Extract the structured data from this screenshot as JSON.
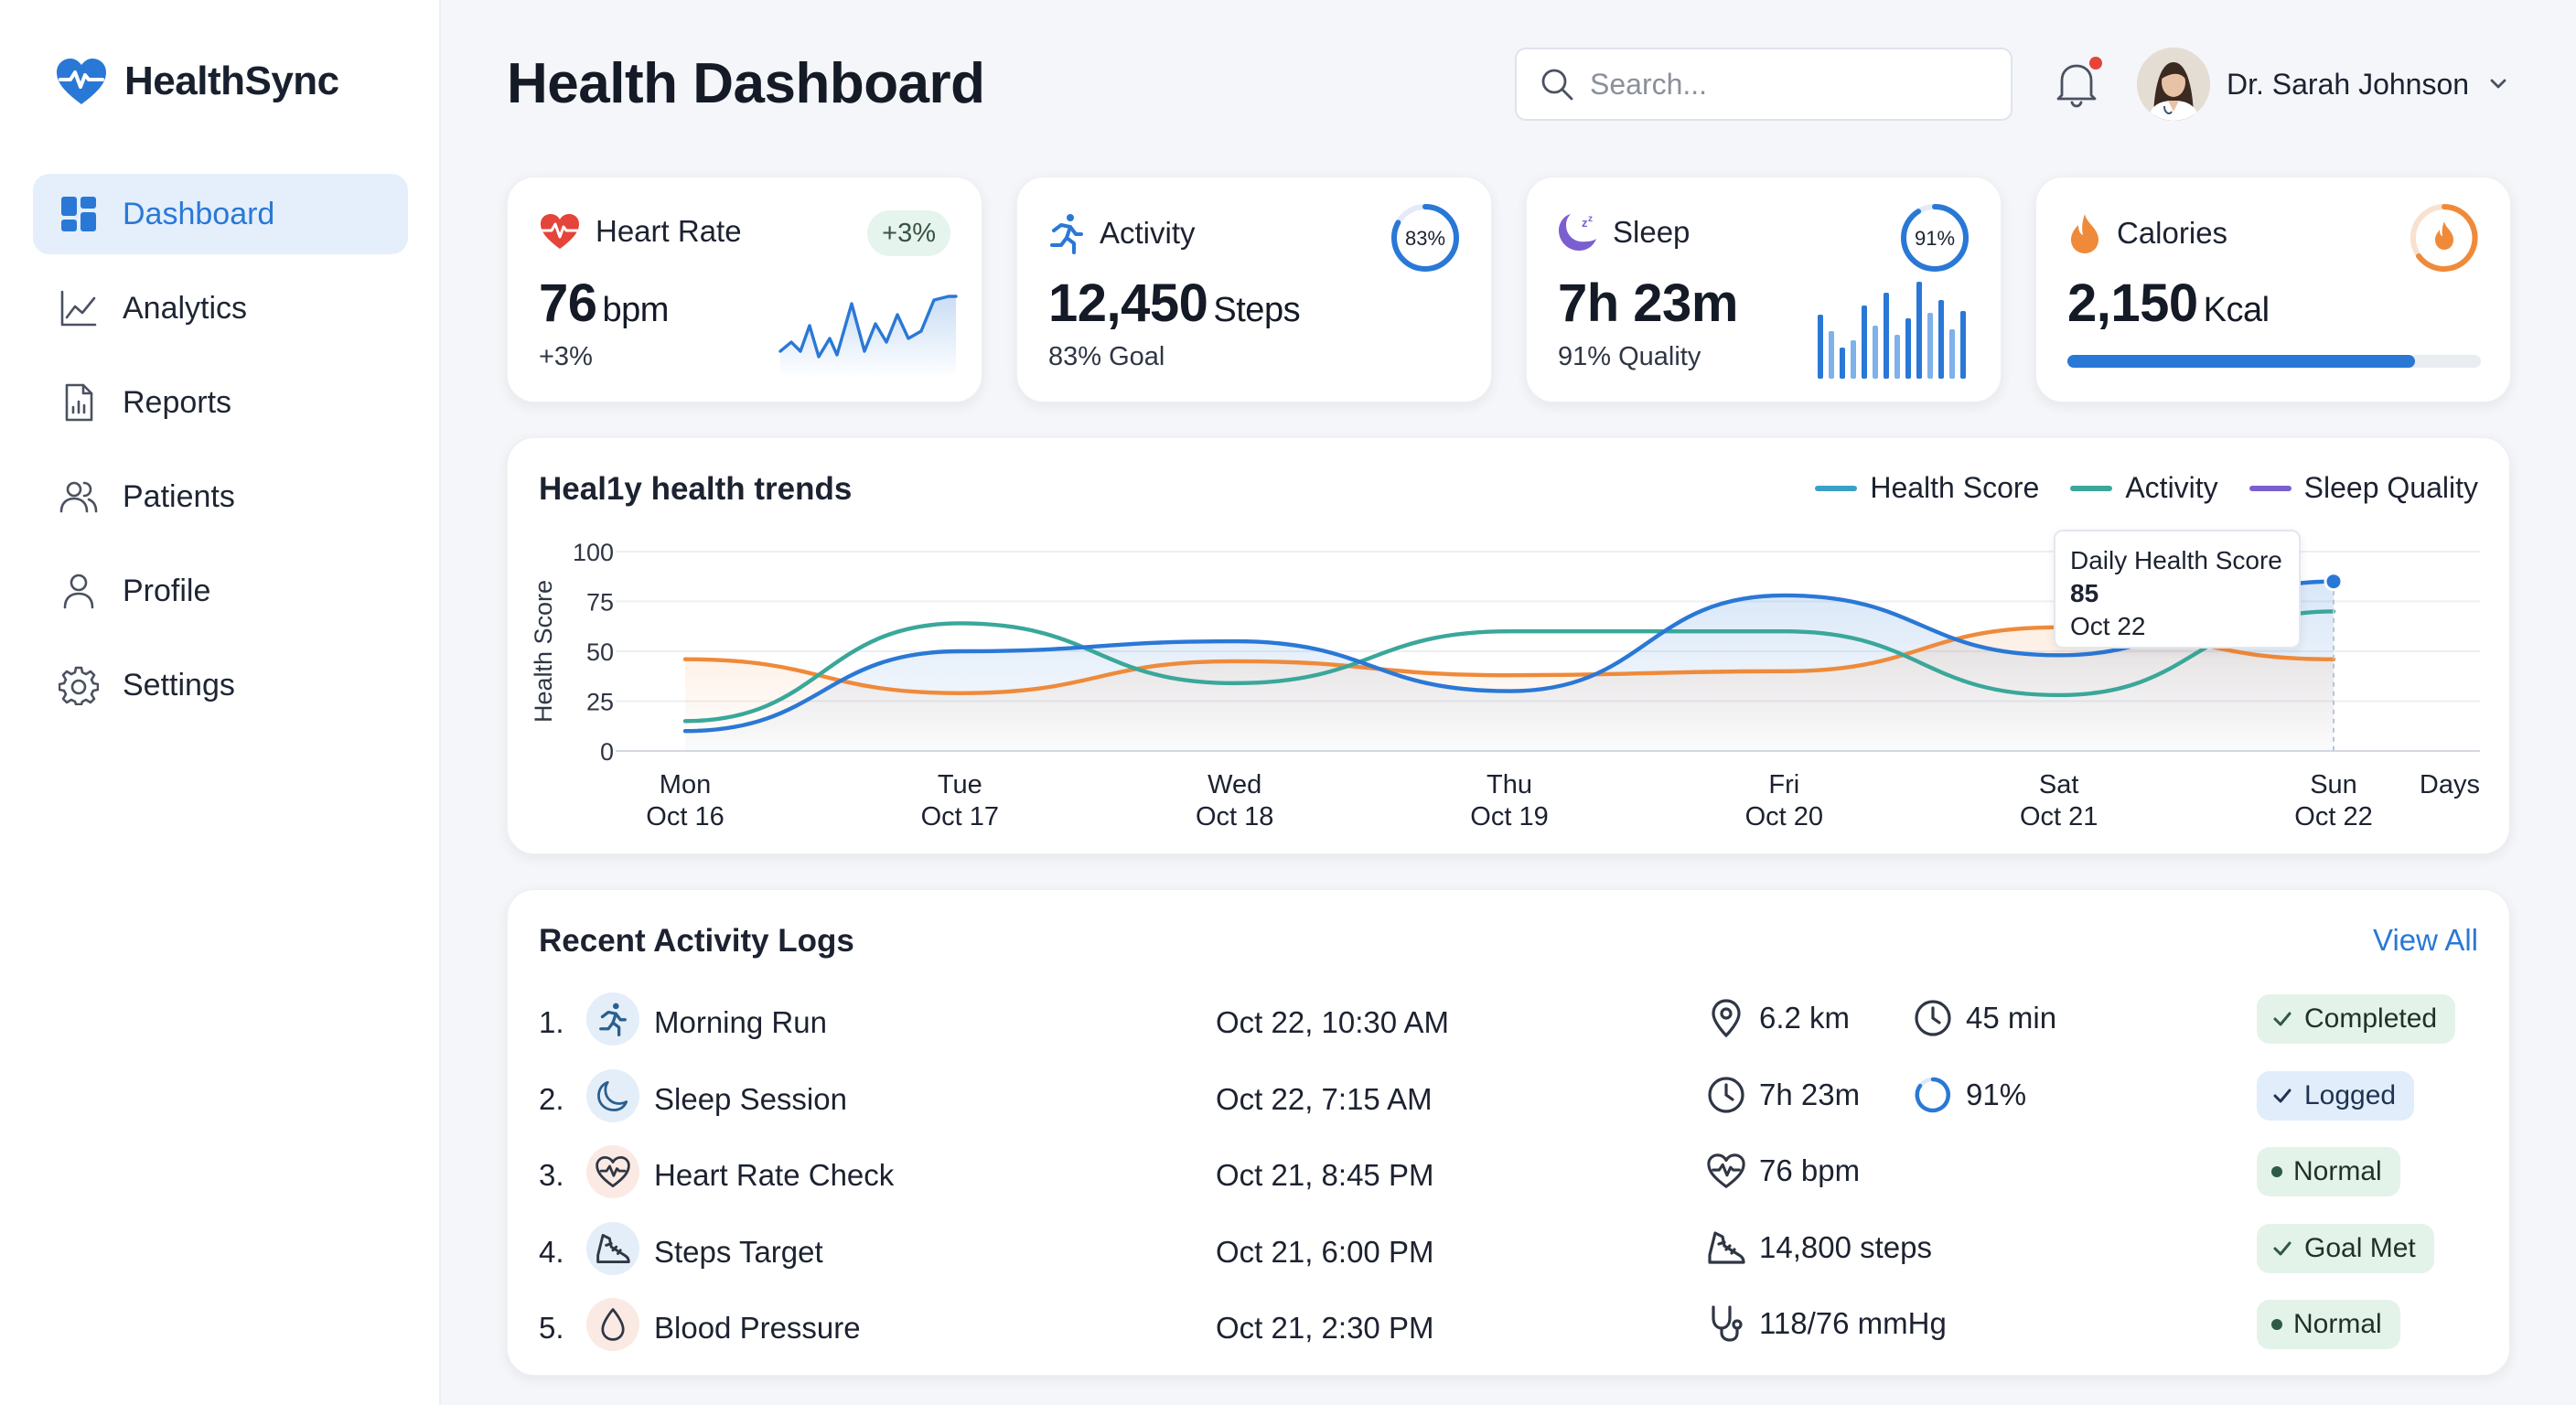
{
  "app": {
    "name": "HealthSync",
    "brand_color": "#2a78d6"
  },
  "sidebar": {
    "items": [
      {
        "label": "Dashboard",
        "icon": "grid-icon",
        "active": true
      },
      {
        "label": "Analytics",
        "icon": "line-chart-icon",
        "active": false
      },
      {
        "label": "Reports",
        "icon": "report-icon",
        "active": false
      },
      {
        "label": "Patients",
        "icon": "users-icon",
        "active": false
      },
      {
        "label": "Profile",
        "icon": "user-icon",
        "active": false
      },
      {
        "label": "Settings",
        "icon": "gear-icon",
        "active": false
      }
    ]
  },
  "header": {
    "title": "Health Dashboard",
    "search_placeholder": "Search...",
    "user_name": "Dr. Sarah Johnson",
    "notification_dot": true
  },
  "stats": {
    "heart": {
      "label": "Heart Rate",
      "value": "76",
      "unit": "bpm",
      "sub": "+3%",
      "pill": "+3%"
    },
    "activity": {
      "label": "Activity",
      "value": "12,450",
      "unit": "Steps",
      "sub": "83% Goal",
      "ring_label": "83%",
      "ring_value": 83
    },
    "sleep": {
      "label": "Sleep",
      "value": "7h 23m",
      "sub": "91% Quality",
      "ring_label": "91%",
      "ring_value": 91
    },
    "calories": {
      "label": "Calories",
      "value": "2,150",
      "unit": "Kcal",
      "progress": 0.84
    }
  },
  "trends": {
    "title": "Heal1y health trends",
    "tooltip": {
      "title": "Daily Health Score",
      "value": "85",
      "date": "Oct 22"
    }
  },
  "chart_data": {
    "type": "line",
    "title": "Heal1y health trends",
    "ylabel": "Health Score",
    "xlabel": "Days",
    "ylim": [
      0,
      100
    ],
    "yticks": [
      100,
      75,
      50,
      25,
      0
    ],
    "x_days": [
      "Mon",
      "Tue",
      "Wed",
      "Thu",
      "Fri",
      "Sat",
      "Sun"
    ],
    "x_dates": [
      "Oct 16",
      "Oct 17",
      "Oct 18",
      "Oct 19",
      "Oct 20",
      "Oct 21",
      "Oct 22"
    ],
    "legend_position": "top-right",
    "grid": true,
    "series": [
      {
        "name": "Health Score",
        "color": "#2a78d6",
        "values": [
          10,
          50,
          55,
          30,
          78,
          48,
          85
        ]
      },
      {
        "name": "Activity",
        "color": "#3aa79a",
        "values": [
          15,
          64,
          34,
          60,
          60,
          28,
          70
        ]
      },
      {
        "name": "Sleep Quality",
        "color": "#7b5fd0",
        "values": [
          46,
          29,
          45,
          38,
          40,
          62,
          46
        ]
      }
    ]
  },
  "logs": {
    "title": "Recent Activity Logs",
    "view_all": "View All",
    "rows": [
      {
        "num": "1.",
        "name": "Morning Run",
        "time": "Oct 22, 10:30 AM",
        "m1": "6.2 km",
        "m1_icon": "location-pin-icon",
        "m2": "45 min",
        "m2_icon": "clock-icon",
        "status": "Completed",
        "status_style": "green-check",
        "icon": "runner-icon",
        "icon_bg": "#e4eef9"
      },
      {
        "num": "2.",
        "name": "Sleep Session",
        "time": "Oct 22, 7:15 AM",
        "m1": "7h 23m",
        "m1_icon": "clock-icon",
        "m2": "91%",
        "m2_icon": "progress-ring-icon",
        "status": "Logged",
        "status_style": "blue-check",
        "icon": "moon-icon",
        "icon_bg": "#e4eef9"
      },
      {
        "num": "3.",
        "name": "Heart Rate Check",
        "time": "Oct 21, 8:45 PM",
        "m1": "76 bpm",
        "m1_icon": "heart-pulse-icon",
        "m2": "",
        "m2_icon": "",
        "status": "Normal",
        "status_style": "green-dot",
        "icon": "heart-pulse-icon",
        "icon_bg": "#fbeae4"
      },
      {
        "num": "4.",
        "name": "Steps Target",
        "time": "Oct 21, 6:00 PM",
        "m1": "14,800 steps",
        "m1_icon": "shoe-icon",
        "m2": "",
        "m2_icon": "",
        "status": "Goal Met",
        "status_style": "green-check",
        "icon": "shoe-icon",
        "icon_bg": "#e4eef9"
      },
      {
        "num": "5.",
        "name": "Blood Pressure",
        "time": "Oct 21, 2:30 PM",
        "m1": "118/76 mmHg",
        "m1_icon": "stethoscope-icon",
        "m2": "",
        "m2_icon": "",
        "status": "Normal",
        "status_style": "green-dot",
        "icon": "drop-icon",
        "icon_bg": "#fbeae4"
      }
    ]
  }
}
